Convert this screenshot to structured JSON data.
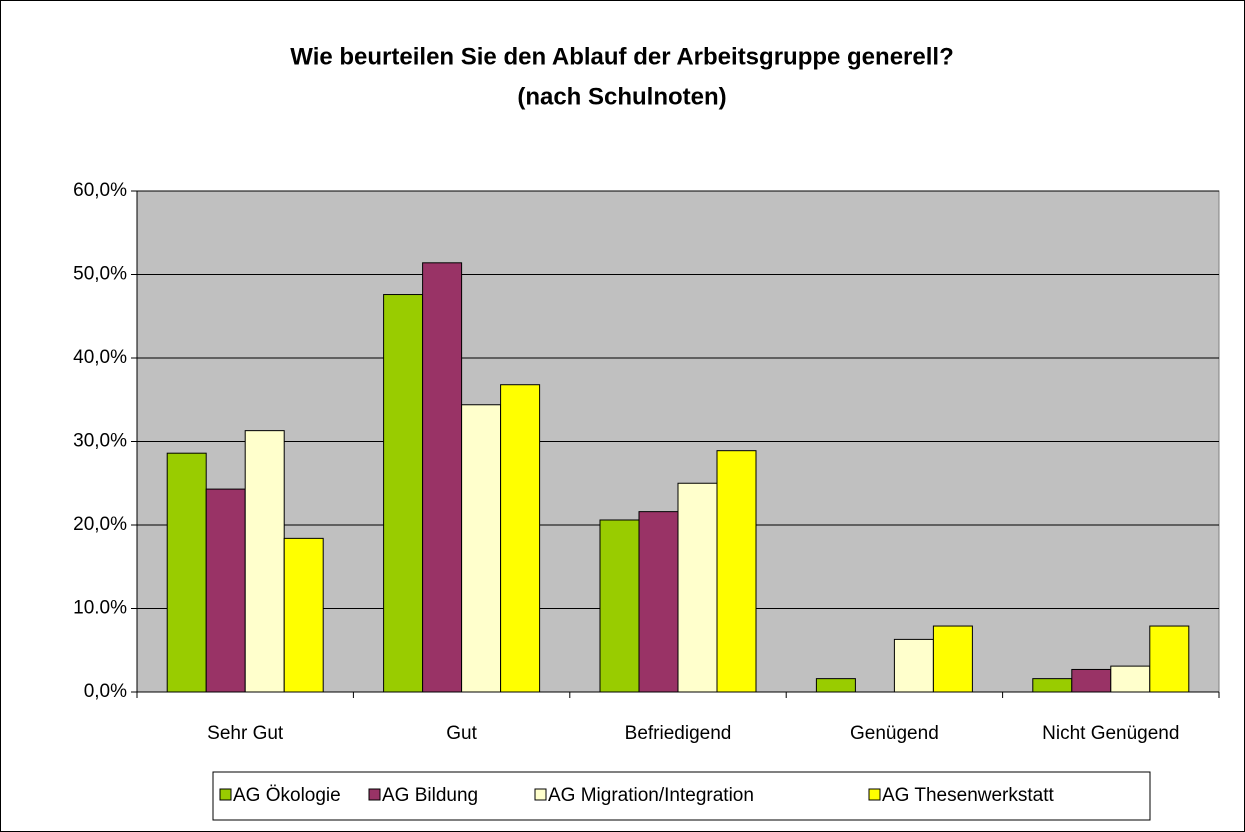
{
  "chart_data": {
    "type": "bar",
    "title": "Wie beurteilen Sie den Ablauf der Arbeitsgruppe generell?",
    "subtitle": "(nach Schulnoten)",
    "categories": [
      "Sehr Gut",
      "Gut",
      "Befriedigend",
      "Genügend",
      "Nicht Genügend"
    ],
    "series": [
      {
        "name": "AG Ökologie",
        "color": "#99cc00",
        "values": [
          28.6,
          47.6,
          20.6,
          1.6,
          1.6
        ]
      },
      {
        "name": "AG Bildung",
        "color": "#993366",
        "values": [
          24.3,
          51.4,
          21.6,
          0,
          2.7
        ]
      },
      {
        "name": "AG Migration/Integration",
        "color": "#ffffcc",
        "values": [
          31.3,
          34.4,
          25.0,
          6.3,
          3.1
        ]
      },
      {
        "name": "AG Thesenwerkstatt",
        "color": "#ffff00",
        "values": [
          18.4,
          36.8,
          28.9,
          7.9,
          7.9
        ]
      }
    ],
    "ylim": [
      0,
      60
    ],
    "yticks": [
      {
        "value": 0,
        "label": "0,0%"
      },
      {
        "value": 10,
        "label": "10.0%"
      },
      {
        "value": 20,
        "label": "20,0%"
      },
      {
        "value": 30,
        "label": "30,0%"
      },
      {
        "value": 40,
        "label": "40,0%"
      },
      {
        "value": 50,
        "label": "50,0%"
      },
      {
        "value": 60,
        "label": "60,0%"
      }
    ],
    "grid": true,
    "legend": "bottom",
    "plot_background": "#c0c0c0"
  }
}
